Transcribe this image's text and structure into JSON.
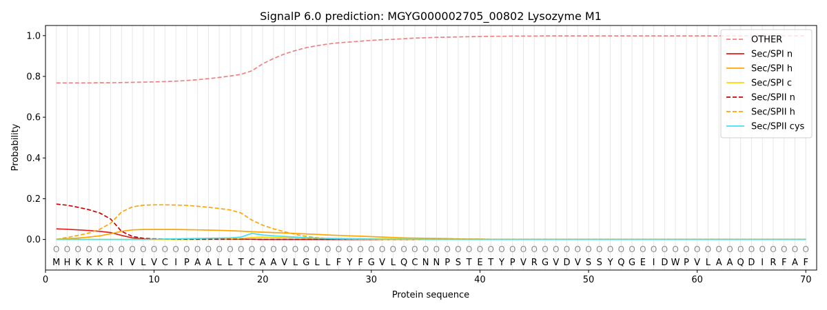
{
  "chart_data": {
    "type": "line",
    "title": "SignalP 6.0 prediction: MGYG000002705_00802 Lysozyme M1",
    "xlabel": "Protein sequence",
    "ylabel": "Probability",
    "xlim": [
      0,
      71
    ],
    "ylim": [
      -0.15,
      1.05
    ],
    "xticks": [
      0,
      10,
      20,
      30,
      40,
      50,
      60,
      70
    ],
    "yticks": [
      "0.0",
      "0.2",
      "0.4",
      "0.6",
      "0.8",
      "1.0"
    ],
    "legend_position": "top-right",
    "grid": "vertical lines at each residue",
    "sequence": [
      "M",
      "H",
      "K",
      "K",
      "K",
      "R",
      "I",
      "V",
      "L",
      "V",
      "C",
      "I",
      "P",
      "A",
      "A",
      "L",
      "L",
      "T",
      "C",
      "A",
      "A",
      "V",
      "L",
      "G",
      "L",
      "L",
      "F",
      "Y",
      "F",
      "G",
      "V",
      "L",
      "Q",
      "C",
      "N",
      "N",
      "P",
      "S",
      "T",
      "E",
      "T",
      "Y",
      "P",
      "V",
      "R",
      "G",
      "V",
      "D",
      "V",
      "S",
      "S",
      "Y",
      "Q",
      "G",
      "E",
      "I",
      "D",
      "W",
      "P",
      "V",
      "L",
      "A",
      "A",
      "Q",
      "D",
      "I",
      "R",
      "F",
      "A",
      "F"
    ],
    "region_label": "O",
    "series": [
      {
        "name": "OTHER",
        "color": "#f08080",
        "dash": "dashed",
        "values": [
          0.768,
          0.768,
          0.768,
          0.768,
          0.769,
          0.769,
          0.77,
          0.771,
          0.772,
          0.773,
          0.775,
          0.777,
          0.78,
          0.784,
          0.789,
          0.795,
          0.802,
          0.81,
          0.828,
          0.862,
          0.888,
          0.91,
          0.927,
          0.941,
          0.951,
          0.959,
          0.965,
          0.969,
          0.973,
          0.977,
          0.98,
          0.982,
          0.985,
          0.988,
          0.99,
          0.992,
          0.993,
          0.994,
          0.995,
          0.996,
          0.997,
          0.997,
          0.998,
          0.998,
          0.998,
          0.999,
          0.999,
          0.999,
          0.999,
          0.999,
          0.999,
          0.999,
          0.999,
          0.999,
          0.999,
          0.999,
          0.999,
          0.999,
          0.999,
          0.999,
          0.999,
          0.999,
          0.999,
          0.999,
          0.999,
          0.999,
          0.999,
          0.999,
          0.999,
          0.999
        ]
      },
      {
        "name": "Sec/SPI n",
        "color": "#e31a1c",
        "dash": "solid",
        "values": [
          0.052,
          0.05,
          0.047,
          0.044,
          0.04,
          0.034,
          0.02,
          0.008,
          0.003,
          0.001,
          0.001,
          0.001,
          0.001,
          0.001,
          0.001,
          0.001,
          0.001,
          0.001,
          0.001,
          0,
          0,
          0,
          0,
          0,
          0,
          0,
          0,
          0,
          0,
          0,
          0,
          0,
          0,
          0,
          0,
          0,
          0,
          0,
          0,
          0,
          0,
          0,
          0,
          0,
          0,
          0,
          0,
          0,
          0,
          0,
          0,
          0,
          0,
          0,
          0,
          0,
          0,
          0,
          0,
          0,
          0,
          0,
          0,
          0,
          0,
          0,
          0,
          0,
          0,
          0
        ]
      },
      {
        "name": "Sec/SPI h",
        "color": "#ffa500",
        "dash": "solid",
        "values": [
          0.001,
          0.004,
          0.007,
          0.012,
          0.018,
          0.028,
          0.04,
          0.047,
          0.049,
          0.049,
          0.049,
          0.049,
          0.048,
          0.047,
          0.046,
          0.045,
          0.043,
          0.041,
          0.038,
          0.036,
          0.034,
          0.032,
          0.03,
          0.027,
          0.025,
          0.022,
          0.02,
          0.018,
          0.016,
          0.014,
          0.012,
          0.01,
          0.008,
          0.007,
          0.006,
          0.005,
          0.004,
          0.003,
          0.002,
          0.002,
          0.001,
          0.001,
          0.001,
          0,
          0,
          0,
          0,
          0,
          0,
          0,
          0,
          0,
          0,
          0,
          0,
          0,
          0,
          0,
          0,
          0,
          0,
          0,
          0,
          0,
          0,
          0,
          0,
          0,
          0,
          0
        ]
      },
      {
        "name": "Sec/SPI c",
        "color": "#ffd700",
        "dash": "solid",
        "values": [
          0,
          0,
          0,
          0,
          0,
          0,
          0,
          0,
          0,
          0,
          0,
          0,
          0,
          0.001,
          0.001,
          0.002,
          0.003,
          0.005,
          0.01,
          0.012,
          0.01,
          0.009,
          0.008,
          0.007,
          0.006,
          0.005,
          0.005,
          0.004,
          0.004,
          0.003,
          0.003,
          0.003,
          0.002,
          0.002,
          0.002,
          0.001,
          0.001,
          0.001,
          0.001,
          0.001,
          0,
          0,
          0,
          0,
          0,
          0,
          0,
          0,
          0,
          0,
          0,
          0,
          0,
          0,
          0,
          0,
          0,
          0,
          0,
          0,
          0,
          0,
          0,
          0,
          0,
          0,
          0,
          0,
          0,
          0
        ]
      },
      {
        "name": "Sec/SPII n",
        "color": "#cc0000",
        "dash": "dashed",
        "values": [
          0.174,
          0.168,
          0.158,
          0.146,
          0.13,
          0.1,
          0.04,
          0.015,
          0.006,
          0.003,
          0.002,
          0.001,
          0.001,
          0.001,
          0.001,
          0.001,
          0.001,
          0.001,
          0.001,
          0,
          0,
          0,
          0,
          0,
          0,
          0,
          0,
          0,
          0,
          0,
          0,
          0,
          0,
          0,
          0,
          0,
          0,
          0,
          0,
          0,
          0,
          0,
          0,
          0,
          0,
          0,
          0,
          0,
          0,
          0,
          0,
          0,
          0,
          0,
          0,
          0,
          0,
          0,
          0,
          0,
          0,
          0,
          0,
          0,
          0,
          0,
          0,
          0,
          0,
          0
        ]
      },
      {
        "name": "Sec/SPII h",
        "color": "#ffa500",
        "dash": "dashed",
        "values": [
          0.001,
          0.01,
          0.02,
          0.032,
          0.05,
          0.08,
          0.135,
          0.16,
          0.168,
          0.17,
          0.17,
          0.169,
          0.167,
          0.163,
          0.158,
          0.152,
          0.145,
          0.13,
          0.095,
          0.07,
          0.052,
          0.038,
          0.025,
          0.015,
          0.009,
          0.005,
          0.003,
          0.002,
          0.001,
          0.001,
          0,
          0,
          0,
          0,
          0,
          0,
          0,
          0,
          0,
          0,
          0,
          0,
          0,
          0,
          0,
          0,
          0,
          0,
          0,
          0,
          0,
          0,
          0,
          0,
          0,
          0,
          0,
          0,
          0,
          0,
          0,
          0,
          0,
          0,
          0,
          0,
          0,
          0,
          0,
          0
        ]
      },
      {
        "name": "Sec/SPII cys",
        "color": "#40e0f0",
        "dash": "solid",
        "values": [
          0,
          0,
          0,
          0,
          0,
          0,
          0,
          0,
          0,
          0.001,
          0.002,
          0.003,
          0.004,
          0.005,
          0.006,
          0.007,
          0.008,
          0.012,
          0.03,
          0.022,
          0.018,
          0.015,
          0.012,
          0.009,
          0.007,
          0.005,
          0.004,
          0.003,
          0.002,
          0.002,
          0.001,
          0.001,
          0.001,
          0.001,
          0,
          0,
          0,
          0,
          0,
          0,
          0,
          0,
          0,
          0,
          0,
          0,
          0,
          0,
          0,
          0,
          0,
          0,
          0,
          0,
          0,
          0,
          0,
          0,
          0,
          0,
          0,
          0,
          0,
          0,
          0,
          0,
          0,
          0,
          0,
          0
        ]
      }
    ]
  }
}
